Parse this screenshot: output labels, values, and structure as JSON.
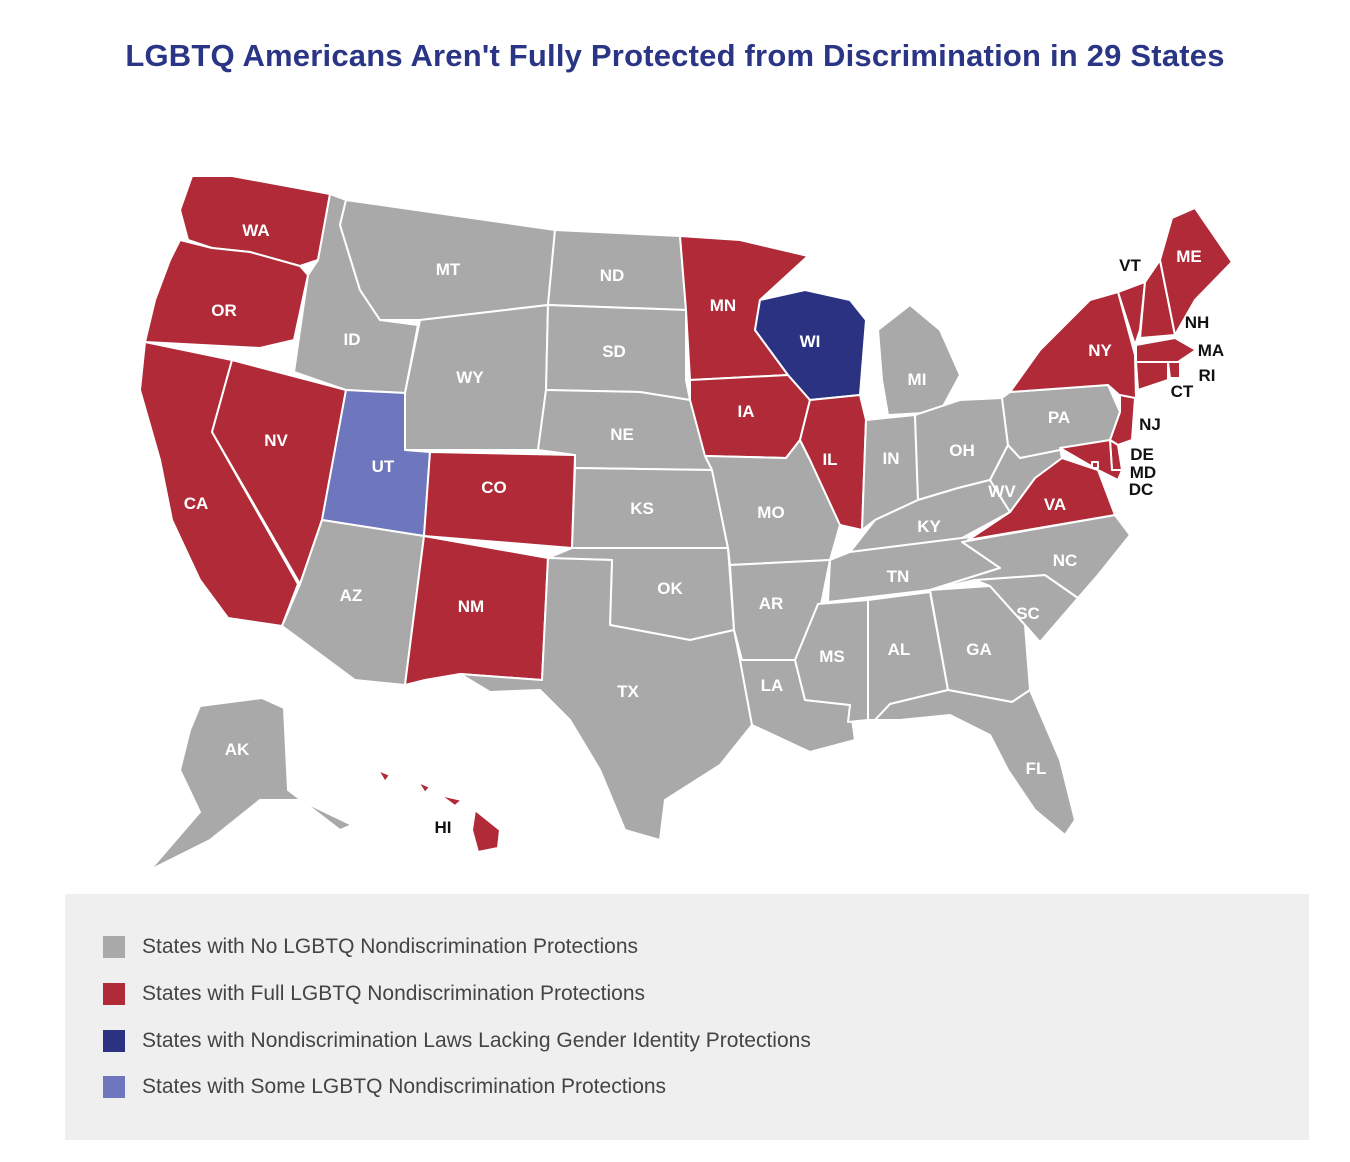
{
  "title": "LGBTQ Americans Aren't Fully Protected from Discrimination in 29 States",
  "colors": {
    "none": "#a9a9a9",
    "full": "#b02a38",
    "lacking_gender_identity": "#2b3282",
    "some": "#6e76bd"
  },
  "states": [
    {
      "abbr": "WA",
      "status": "full"
    },
    {
      "abbr": "OR",
      "status": "full"
    },
    {
      "abbr": "CA",
      "status": "full"
    },
    {
      "abbr": "NV",
      "status": "full"
    },
    {
      "abbr": "ID",
      "status": "none"
    },
    {
      "abbr": "MT",
      "status": "none"
    },
    {
      "abbr": "WY",
      "status": "none"
    },
    {
      "abbr": "UT",
      "status": "some"
    },
    {
      "abbr": "CO",
      "status": "full"
    },
    {
      "abbr": "AZ",
      "status": "none"
    },
    {
      "abbr": "NM",
      "status": "full"
    },
    {
      "abbr": "ND",
      "status": "none"
    },
    {
      "abbr": "SD",
      "status": "none"
    },
    {
      "abbr": "NE",
      "status": "none"
    },
    {
      "abbr": "KS",
      "status": "none"
    },
    {
      "abbr": "OK",
      "status": "none"
    },
    {
      "abbr": "TX",
      "status": "none"
    },
    {
      "abbr": "MN",
      "status": "full"
    },
    {
      "abbr": "IA",
      "status": "full"
    },
    {
      "abbr": "MO",
      "status": "none"
    },
    {
      "abbr": "AR",
      "status": "none"
    },
    {
      "abbr": "LA",
      "status": "none"
    },
    {
      "abbr": "WI",
      "status": "lacking_gender_identity"
    },
    {
      "abbr": "IL",
      "status": "full"
    },
    {
      "abbr": "MI",
      "status": "none"
    },
    {
      "abbr": "IN",
      "status": "none"
    },
    {
      "abbr": "OH",
      "status": "none"
    },
    {
      "abbr": "KY",
      "status": "none"
    },
    {
      "abbr": "TN",
      "status": "none"
    },
    {
      "abbr": "MS",
      "status": "none"
    },
    {
      "abbr": "AL",
      "status": "none"
    },
    {
      "abbr": "GA",
      "status": "none"
    },
    {
      "abbr": "FL",
      "status": "none"
    },
    {
      "abbr": "SC",
      "status": "none"
    },
    {
      "abbr": "NC",
      "status": "none"
    },
    {
      "abbr": "VA",
      "status": "full"
    },
    {
      "abbr": "WV",
      "status": "none"
    },
    {
      "abbr": "PA",
      "status": "none"
    },
    {
      "abbr": "NY",
      "status": "full"
    },
    {
      "abbr": "VT",
      "status": "full"
    },
    {
      "abbr": "NH",
      "status": "full"
    },
    {
      "abbr": "ME",
      "status": "full"
    },
    {
      "abbr": "MA",
      "status": "full"
    },
    {
      "abbr": "RI",
      "status": "full"
    },
    {
      "abbr": "CT",
      "status": "full"
    },
    {
      "abbr": "NJ",
      "status": "full"
    },
    {
      "abbr": "DE",
      "status": "full"
    },
    {
      "abbr": "MD",
      "status": "full"
    },
    {
      "abbr": "DC",
      "status": "full"
    },
    {
      "abbr": "AK",
      "status": "none"
    },
    {
      "abbr": "HI",
      "status": "full"
    }
  ],
  "legend": [
    {
      "key": "none",
      "label": "States with No LGBTQ Nondiscrimination Protections"
    },
    {
      "key": "full",
      "label": "States with Full LGBTQ Nondiscrimination Protections"
    },
    {
      "key": "lacking_gender_identity",
      "label": "States with Nondiscrimination Laws Lacking Gender Identity Protections"
    },
    {
      "key": "some",
      "label": "States with Some LGBTQ Nondiscrimination Protections"
    }
  ]
}
